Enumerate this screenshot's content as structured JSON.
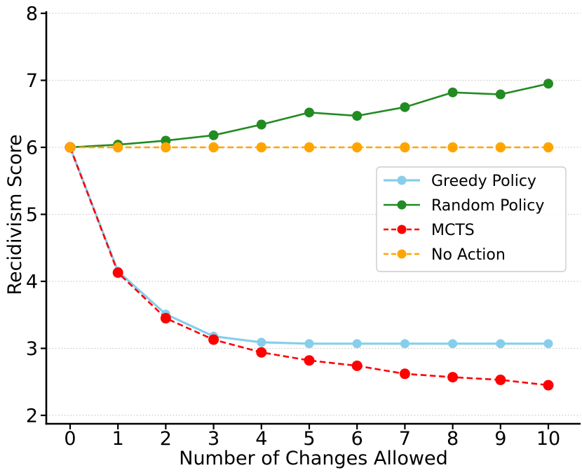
{
  "chart_data": {
    "type": "line",
    "title": "",
    "xlabel": "Number of Changes Allowed",
    "ylabel": "Recidivism Score",
    "x": [
      0,
      1,
      2,
      3,
      4,
      5,
      6,
      7,
      8,
      9,
      10
    ],
    "x_tick_labels": [
      "0",
      "1",
      "2",
      "3",
      "4",
      "5",
      "6",
      "7",
      "8",
      "9",
      "10"
    ],
    "y_ticks": [
      2,
      3,
      4,
      5,
      6,
      7,
      8
    ],
    "y_tick_labels": [
      "2",
      "3",
      "4",
      "5",
      "6",
      "7",
      "8"
    ],
    "xlim": [
      -0.5,
      10.67
    ],
    "ylim": [
      1.87,
      8.1
    ],
    "grid": "horizontal-dotted",
    "legend_position": "center-right",
    "series": [
      {
        "name": "Greedy Policy",
        "color": "#87CEEB",
        "linestyle": "solid",
        "marker": "circle",
        "linewidth": 3.2,
        "markersize": 6.5,
        "values": [
          6.0,
          4.15,
          3.51,
          3.18,
          3.09,
          3.07,
          3.07,
          3.07,
          3.07,
          3.07,
          3.07
        ]
      },
      {
        "name": "Random Policy",
        "color": "#228B22",
        "linestyle": "solid",
        "marker": "circle",
        "linewidth": 2.6,
        "markersize": 7,
        "values": [
          6.0,
          6.04,
          6.1,
          6.18,
          6.34,
          6.52,
          6.47,
          6.6,
          6.82,
          6.79,
          6.95
        ]
      },
      {
        "name": "MCTS",
        "color": "#FF0000",
        "linestyle": "dashed",
        "marker": "circle",
        "linewidth": 2.6,
        "markersize": 7.5,
        "values": [
          6.0,
          4.13,
          3.45,
          3.13,
          2.94,
          2.82,
          2.74,
          2.62,
          2.57,
          2.53,
          2.45
        ]
      },
      {
        "name": "No Action",
        "color": "#FFA500",
        "linestyle": "dashed",
        "marker": "circle",
        "linewidth": 2.6,
        "markersize": 7.2,
        "values": [
          6.0,
          6.0,
          6.0,
          6.0,
          6.0,
          6.0,
          6.0,
          6.0,
          6.0,
          6.0,
          6.0
        ]
      }
    ],
    "colors": {
      "grid": "#c8c8c8",
      "axis": "#000000",
      "text": "#000000",
      "legend_border": "#cccccc",
      "legend_background": "#ffffff"
    }
  }
}
